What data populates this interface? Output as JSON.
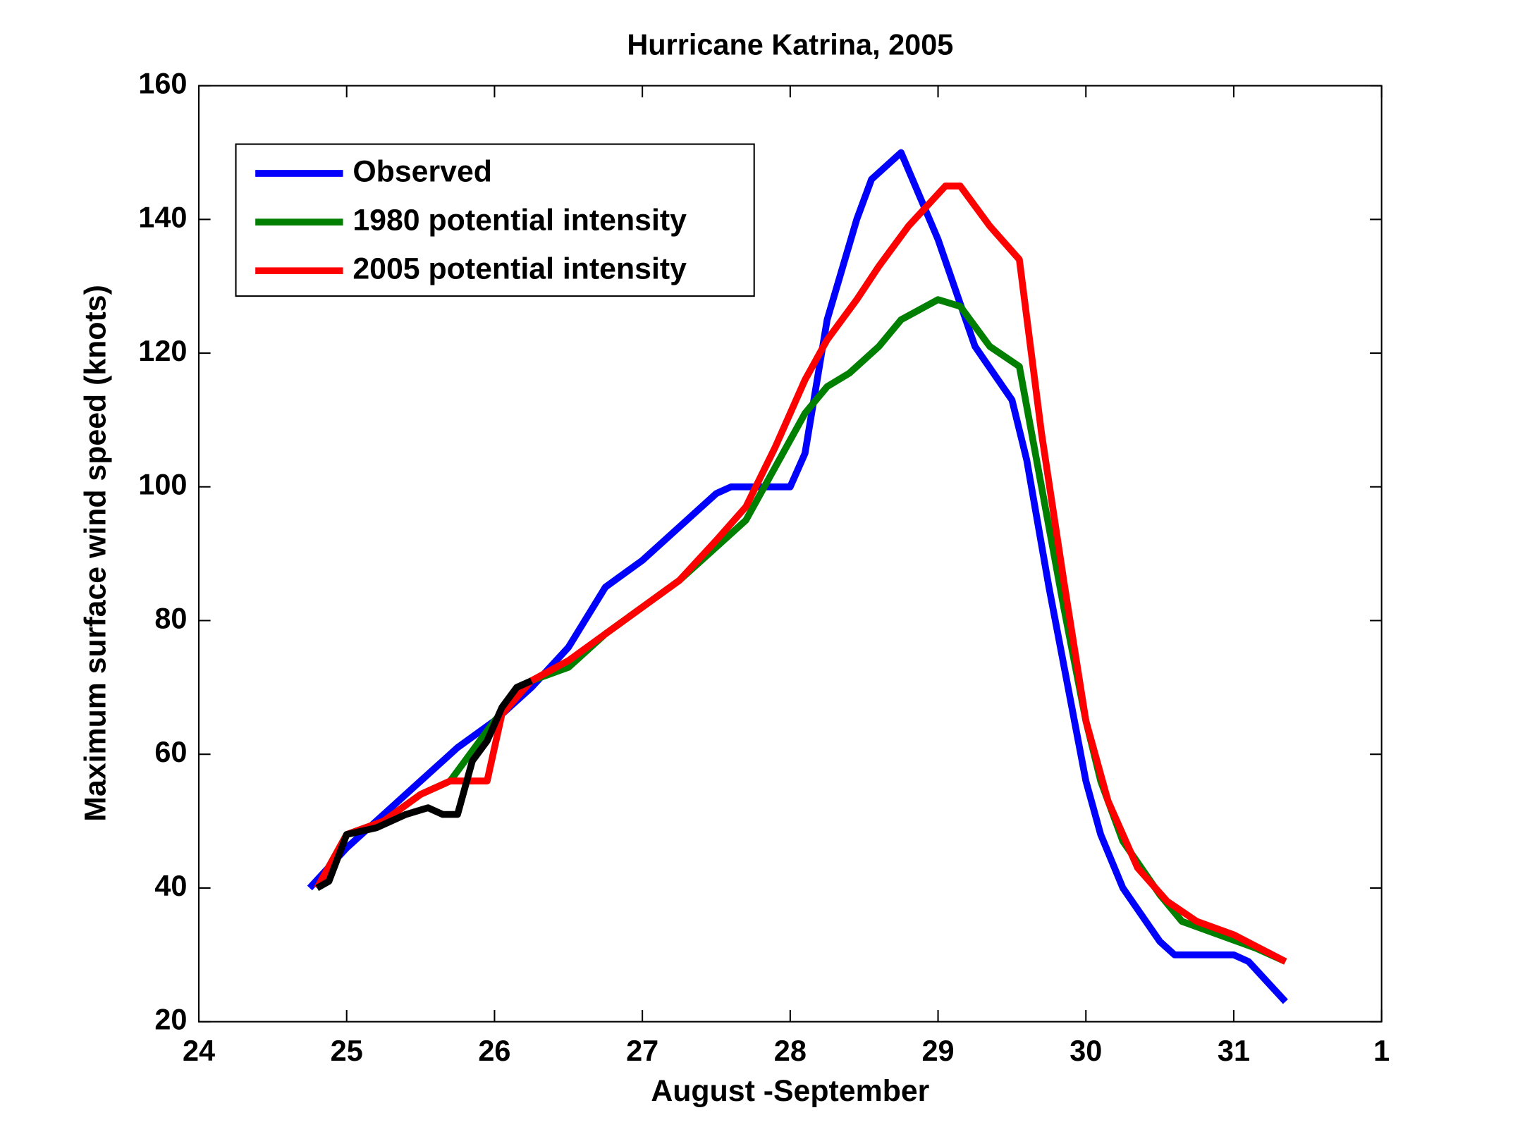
{
  "chart_data": {
    "type": "line",
    "title": "Hurricane Katrina, 2005",
    "xlabel": "August -September",
    "ylabel": "Maximum surface wind speed (knots)",
    "xlim": [
      24,
      32
    ],
    "xticks": [
      24,
      25,
      26,
      27,
      28,
      29,
      30,
      31,
      {
        "value": 32,
        "label": "1"
      }
    ],
    "ylim": [
      20,
      160
    ],
    "yticks": [
      20,
      40,
      60,
      80,
      100,
      120,
      140,
      160
    ],
    "legend": "upper left",
    "series": [
      {
        "name": "Observed",
        "color": "#0000ff",
        "x": [
          24.75,
          25,
          25.25,
          25.5,
          25.75,
          26,
          26.25,
          26.5,
          26.75,
          27,
          27.25,
          27.5,
          27.6,
          27.75,
          28,
          28.1,
          28.25,
          28.45,
          28.55,
          28.75,
          29,
          29.25,
          29.5,
          29.6,
          29.75,
          30,
          30.1,
          30.25,
          30.5,
          30.6,
          31,
          31.1,
          31.35
        ],
        "values": [
          40,
          46,
          51,
          56,
          61,
          65,
          70,
          76,
          85,
          89,
          94,
          99,
          100,
          100,
          100,
          105,
          125,
          140,
          146,
          150,
          137,
          121,
          113,
          104,
          85,
          56,
          48,
          40,
          32,
          30,
          30,
          29,
          23
        ]
      },
      {
        "name": "1980 potential intensity",
        "color": "#007f00",
        "x": [
          24.8,
          25,
          25.25,
          25.5,
          25.7,
          26,
          26.25,
          26.5,
          26.75,
          27,
          27.25,
          27.5,
          27.7,
          27.9,
          28.1,
          28.25,
          28.4,
          28.6,
          28.75,
          29,
          29.15,
          29.35,
          29.55,
          29.7,
          29.85,
          30,
          30.1,
          30.25,
          30.5,
          30.65,
          30.9,
          31.15,
          31.35
        ],
        "values": [
          40,
          48,
          50,
          54,
          56,
          65,
          71,
          73,
          78,
          82,
          86,
          91,
          95,
          103,
          111,
          115,
          117,
          121,
          125,
          128,
          127,
          121,
          118,
          100,
          82,
          65,
          56,
          47,
          39,
          35,
          33,
          31,
          29
        ]
      },
      {
        "name": "2005 potential intensity",
        "color": "#ff0000",
        "x": [
          24.8,
          25,
          25.25,
          25.5,
          25.7,
          25.95,
          26.05,
          26.25,
          26.5,
          26.75,
          27,
          27.25,
          27.5,
          27.7,
          27.9,
          28.1,
          28.25,
          28.45,
          28.6,
          28.8,
          29.05,
          29.15,
          29.35,
          29.55,
          29.7,
          29.85,
          30,
          30.15,
          30.35,
          30.55,
          30.75,
          31,
          31.35
        ],
        "values": [
          40,
          48,
          50,
          54,
          56,
          56,
          66,
          71,
          74,
          78,
          82,
          86,
          92,
          97,
          106,
          116,
          122,
          128,
          133,
          139,
          145,
          145,
          139,
          134,
          108,
          86,
          65,
          53,
          43,
          38,
          35,
          33,
          29
        ]
      },
      {
        "color": "#000000",
        "x": [
          24.8,
          24.88,
          25,
          25.2,
          25.4,
          25.55,
          25.65,
          25.75,
          25.85,
          25.95,
          26.05,
          26.15,
          26.25
        ],
        "values": [
          40,
          41,
          48,
          49,
          51,
          52,
          51,
          51,
          59,
          62,
          67,
          70,
          71
        ]
      }
    ]
  }
}
